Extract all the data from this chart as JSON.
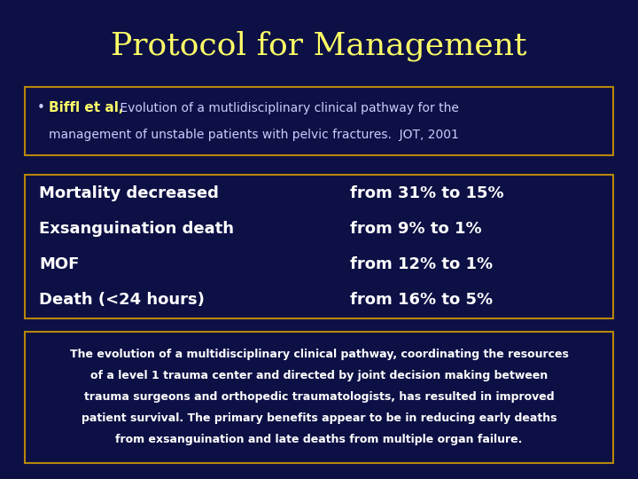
{
  "bg_color": "#0d1045",
  "title": "Protocol for Management",
  "title_color": "#ffff66",
  "title_fontsize": 26,
  "box1_border_color": "#b8860b",
  "box1_label": "Biffl et al,",
  "box1_line1": " Evolution of a mutlidisciplinary clinical pathway for the",
  "box1_line2": "management of unstable patients with pelvic fractures.  JOT, 2001",
  "box1_label_color": "#ffff66",
  "box1_text_color": "#ccccff",
  "box2_border_color": "#b8860b",
  "box2_rows_left": [
    "Mortality decreased",
    "Exsanguination death",
    "MOF",
    "Death (<24 hours)"
  ],
  "box2_rows_right": [
    "from 31% to 15%",
    "from 9% to 1%",
    "from 12% to 1%",
    "from 16% to 5%"
  ],
  "box2_text_color": "#ffffff",
  "box3_border_color": "#b8860b",
  "box3_lines": [
    "The evolution of a multidisciplinary clinical pathway, coordinating the resources",
    "of a level 1 trauma center and directed by joint decision making between",
    "trauma surgeons and orthopedic traumatologists, has resulted in improved",
    "patient survival. The primary benefits appear to be in reducing early deaths",
    "from exsanguination and late deaths from multiple organ failure."
  ],
  "box3_text_color": "#ffffff"
}
